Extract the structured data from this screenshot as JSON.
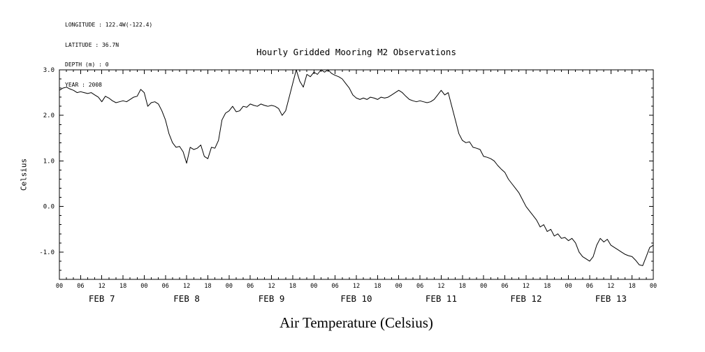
{
  "header": {
    "meta_lines": [
      "LONGITUDE : 122.4W(-122.4)",
      "LATITUDE : 36.7N",
      "DEPTH (m) : 0",
      "YEAR : 2008"
    ],
    "title": "Hourly Gridded Mooring M2 Observations"
  },
  "axes": {
    "ylabel": "Celsius",
    "xlabel": "Air Temperature (Celsius)"
  },
  "chart_data": {
    "type": "line",
    "title": "Hourly Gridded Mooring M2 Observations",
    "xlabel": "Air Temperature (Celsius)",
    "ylabel": "Celsius",
    "x_unit": "hours since FEB 7 00:00 (YEAR 2008)",
    "x_step_hours": 1,
    "x_range_hours": [
      0,
      168
    ],
    "ylim": [
      -1.6,
      3.0
    ],
    "yticks": [
      3.0,
      2.0,
      1.0,
      0.0,
      -1.0
    ],
    "ytick_labels": [
      "3.0",
      "2.0",
      "1.0",
      "0.0",
      "-1.0"
    ],
    "xtick_step_hours": 6,
    "xtick_label_cycle": [
      "00",
      "06",
      "12",
      "18"
    ],
    "day_labels": [
      "FEB 7",
      "FEB 8",
      "FEB 9",
      "FEB 10",
      "FEB 11",
      "FEB 12",
      "FEB 13"
    ],
    "line_color": "#000000",
    "grid": false,
    "values": [
      2.55,
      2.6,
      2.62,
      2.58,
      2.55,
      2.5,
      2.52,
      2.5,
      2.48,
      2.5,
      2.45,
      2.4,
      2.3,
      2.42,
      2.38,
      2.32,
      2.28,
      2.3,
      2.32,
      2.3,
      2.35,
      2.4,
      2.42,
      2.57,
      2.5,
      2.2,
      2.28,
      2.3,
      2.25,
      2.1,
      1.9,
      1.6,
      1.4,
      1.3,
      1.32,
      1.2,
      0.95,
      1.3,
      1.25,
      1.28,
      1.35,
      1.1,
      1.05,
      1.3,
      1.28,
      1.45,
      1.9,
      2.05,
      2.1,
      2.2,
      2.08,
      2.1,
      2.2,
      2.18,
      2.25,
      2.22,
      2.2,
      2.25,
      2.22,
      2.2,
      2.22,
      2.2,
      2.15,
      2.0,
      2.1,
      2.4,
      2.7,
      3.0,
      2.75,
      2.62,
      2.9,
      2.85,
      2.95,
      2.9,
      3.0,
      2.95,
      3.0,
      2.92,
      2.88,
      2.85,
      2.8,
      2.7,
      2.6,
      2.45,
      2.38,
      2.35,
      2.38,
      2.35,
      2.4,
      2.38,
      2.35,
      2.4,
      2.38,
      2.4,
      2.45,
      2.5,
      2.55,
      2.5,
      2.42,
      2.35,
      2.32,
      2.3,
      2.32,
      2.3,
      2.28,
      2.3,
      2.35,
      2.45,
      2.55,
      2.45,
      2.5,
      2.2,
      1.9,
      1.6,
      1.45,
      1.4,
      1.42,
      1.3,
      1.28,
      1.25,
      1.1,
      1.08,
      1.05,
      1.0,
      0.9,
      0.82,
      0.75,
      0.6,
      0.5,
      0.4,
      0.3,
      0.15,
      0.0,
      -0.1,
      -0.2,
      -0.3,
      -0.45,
      -0.4,
      -0.55,
      -0.5,
      -0.65,
      -0.6,
      -0.7,
      -0.68,
      -0.75,
      -0.7,
      -0.8,
      -1.0,
      -1.1,
      -1.15,
      -1.2,
      -1.1,
      -0.85,
      -0.7,
      -0.78,
      -0.72,
      -0.85,
      -0.9,
      -0.95,
      -1.0,
      -1.05,
      -1.08,
      -1.1,
      -1.18,
      -1.28,
      -1.3,
      -1.1,
      -0.9,
      -0.85
    ]
  }
}
